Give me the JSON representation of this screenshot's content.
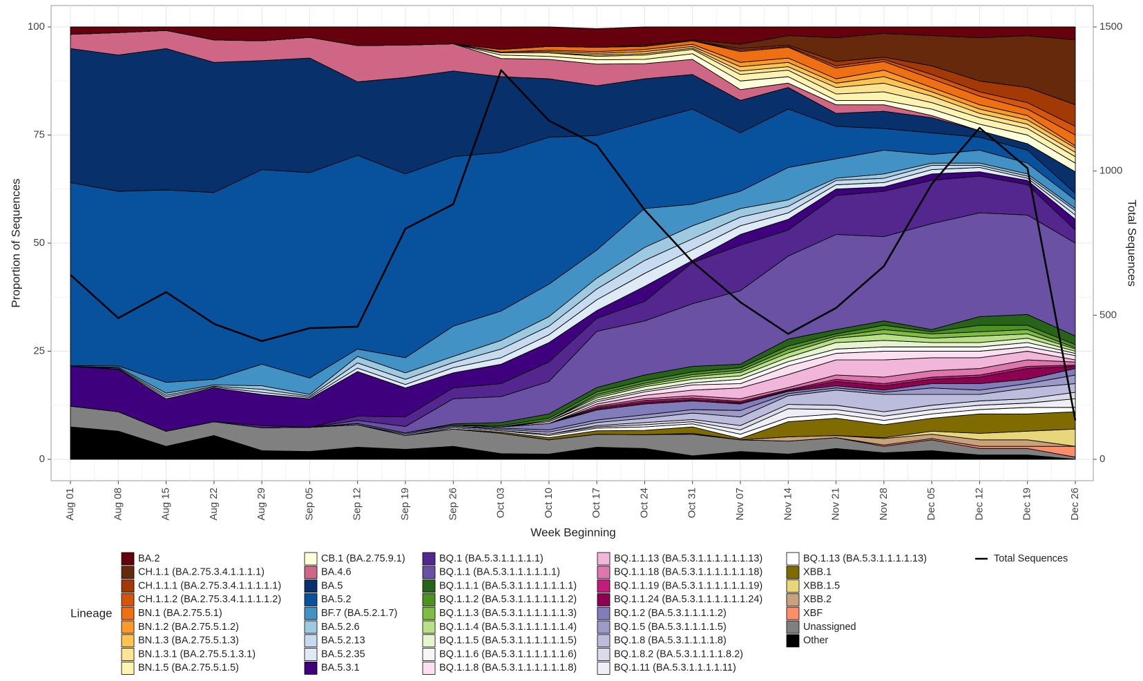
{
  "chart_data": {
    "type": "area",
    "stacked": true,
    "x_label": "Week Beginning",
    "y_label": "Proportion of Sequences",
    "y2_label": "Total Sequences",
    "legend_title": "Lineage",
    "grid": true,
    "categories": [
      "Aug 01",
      "Aug 08",
      "Aug 15",
      "Aug 22",
      "Aug 29",
      "Sep 05",
      "Sep 12",
      "Sep 19",
      "Sep 26",
      "Oct 03",
      "Oct 10",
      "Oct 17",
      "Oct 24",
      "Oct 31",
      "Nov 07",
      "Nov 14",
      "Nov 21",
      "Nov 28",
      "Dec 05",
      "Dec 12",
      "Dec 19",
      "Dec 26"
    ],
    "ylim": [
      0,
      100
    ],
    "yticks": [
      0,
      25,
      50,
      75,
      100
    ],
    "y2lim": [
      0,
      1500
    ],
    "y2ticks": [
      0,
      500,
      1000,
      1500
    ],
    "series": [
      {
        "name": "BA.2",
        "color": "#67000d",
        "values": [
          1.7,
          1.3,
          0.8,
          3,
          3.2,
          2.4,
          4.3,
          4.2,
          3.9,
          5.2,
          4.5,
          4.3,
          4.2,
          3,
          4,
          2,
          2.5,
          1.5,
          2,
          2.5,
          2,
          3
        ]
      },
      {
        "name": "CH.1.1 (BA.2.75.3.4.1.1.1.1)",
        "color": "#67290b",
        "values": [
          0,
          0,
          0,
          0,
          0,
          0,
          0,
          0,
          0,
          0,
          0,
          0,
          0.3,
          0.2,
          1,
          2.2,
          5.5,
          5.5,
          7,
          10,
          12,
          15
        ]
      },
      {
        "name": "CH.1.1.1 (BA.2.75.3.4.1.1.1.1.1)",
        "color": "#a33a06",
        "values": [
          0,
          0,
          0,
          0,
          0,
          0,
          0,
          0,
          0,
          0,
          0,
          0,
          0,
          0,
          0.4,
          0.3,
          1,
          0.5,
          2,
          2.5,
          3.5,
          5
        ]
      },
      {
        "name": "CH.1.1.2 (BA.2.75.3.4.1.1.1.1.2)",
        "color": "#d4550b",
        "values": [
          0,
          0,
          0,
          0,
          0,
          0,
          0,
          0,
          0,
          0,
          0,
          0,
          0,
          0,
          0.3,
          0.2,
          0.5,
          0.5,
          1,
          1,
          1.5,
          2
        ]
      },
      {
        "name": "BN.1 (BA.2.75.5.1)",
        "color": "#ee7012",
        "values": [
          0,
          0,
          0,
          0,
          0,
          0,
          0,
          0,
          0,
          0.6,
          0.9,
          1,
          0.7,
          0.8,
          2.5,
          2.5,
          2.5,
          2,
          2,
          2,
          1.5,
          2.5
        ]
      },
      {
        "name": "BN.1.2 (BA.2.75.5.1.2)",
        "color": "#fb9a29",
        "values": [
          0,
          0,
          0,
          0,
          0,
          0,
          0,
          0,
          0,
          0,
          0.3,
          0.4,
          0.5,
          0.5,
          1,
          1,
          1,
          1.5,
          1,
          1,
          1,
          0.5
        ]
      },
      {
        "name": "BN.1.3 (BA.2.75.5.1.3)",
        "color": "#fec44f",
        "values": [
          0,
          0,
          0,
          0,
          0,
          0,
          0,
          0,
          0,
          0.2,
          0.3,
          0.4,
          0.5,
          0.4,
          1,
          1,
          1,
          1.5,
          1,
          1,
          1,
          1
        ]
      },
      {
        "name": "BN.1.3.1 (BA.2.75.5.1.3.1)",
        "color": "#fee391",
        "values": [
          0,
          0,
          0,
          0,
          0,
          0,
          0,
          0,
          0,
          0,
          0,
          0.3,
          0.3,
          0.3,
          0.8,
          0.8,
          1.5,
          2,
          1.5,
          1,
          1,
          1
        ]
      },
      {
        "name": "BN.1.5 (BA.2.75.5.1.5)",
        "color": "#fff3b0",
        "values": [
          0,
          0,
          0,
          0,
          0,
          0,
          0,
          0,
          0,
          0.5,
          0.8,
          0.8,
          1,
          1,
          1.5,
          1.5,
          1.5,
          2,
          1.5,
          1.5,
          1.5,
          1.5
        ]
      },
      {
        "name": "CB.1 (BA.2.75.9.1)",
        "color": "#ffffd9",
        "values": [
          0,
          0,
          0,
          0,
          0,
          0,
          0,
          0,
          0,
          0.8,
          0.7,
          1,
          1,
          1.3,
          2,
          1.5,
          1,
          1,
          1.5,
          1.5,
          2,
          2
        ]
      },
      {
        "name": "BA.4.6",
        "color": "#cf6686",
        "values": [
          3.3,
          5.2,
          4.2,
          5.2,
          4.6,
          4.8,
          8.4,
          7.5,
          6.3,
          4.2,
          4.5,
          5,
          3.5,
          3.5,
          2.5,
          1,
          2,
          1.5,
          0.5,
          0,
          0,
          0
        ]
      },
      {
        "name": "BA.5",
        "color": "#08306b",
        "values": [
          31,
          31.5,
          32.7,
          30.1,
          25.2,
          26.5,
          17,
          22.3,
          19.8,
          17.5,
          13.5,
          11.5,
          10,
          8,
          7.5,
          5,
          3,
          4,
          3.5,
          1.5,
          1.5,
          5
        ]
      },
      {
        "name": "BA.5.2",
        "color": "#08519c",
        "values": [
          42.3,
          40.4,
          44.5,
          43.2,
          45,
          47.5,
          44.8,
          42.5,
          39.2,
          36.7,
          34,
          26.5,
          20,
          22,
          13.5,
          13.5,
          7.5,
          5,
          5,
          3,
          3,
          1.5
        ]
      },
      {
        "name": "BF.7 (BA.5.2.1.7)",
        "color": "#4292c6",
        "values": [
          0.2,
          0.3,
          2.5,
          1.3,
          5,
          3.8,
          1.7,
          3.5,
          7,
          6.8,
          7.5,
          6.5,
          9,
          5,
          4,
          7.5,
          4.5,
          5.5,
          2,
          3,
          2.5,
          2
        ]
      },
      {
        "name": "BA.5.2.6",
        "color": "#9ecae1",
        "values": [
          0,
          0.2,
          0.5,
          0.3,
          0.8,
          0.4,
          1.5,
          1.5,
          1.4,
          2,
          2.2,
          2.5,
          3,
          3,
          2,
          1.5,
          0.5,
          1,
          0.5,
          0.5,
          0.5,
          0.5
        ]
      },
      {
        "name": "BA.5.2.13",
        "color": "#c6dbef",
        "values": [
          0,
          0.2,
          0.4,
          0.2,
          0.7,
          0.3,
          1.2,
          1.2,
          1.2,
          2,
          2,
          2.5,
          3,
          2.5,
          2,
          1.5,
          1,
          1,
          1,
          0.5,
          0.5,
          1
        ]
      },
      {
        "name": "BA.5.2.35",
        "color": "#deebf7",
        "values": [
          0,
          0.1,
          0.4,
          0.2,
          0.5,
          0.3,
          0.8,
          0.8,
          1.2,
          1.5,
          1.8,
          2.5,
          3,
          2.5,
          2,
          1.5,
          1,
          1,
          1,
          1,
          0.5,
          1
        ]
      },
      {
        "name": "BA.5.3.1",
        "color": "#3f007d",
        "values": [
          9.2,
          9.8,
          7.5,
          7.8,
          7.2,
          6.6,
          10.3,
          6.7,
          3.5,
          4.5,
          4.5,
          1.8,
          3.5,
          0.5,
          2.5,
          2.5,
          1.5,
          1,
          1.5,
          1,
          1,
          2.5
        ]
      },
      {
        "name": "BQ.1 (BA.5.3.1.1.1.1.1)",
        "color": "#54278f",
        "values": [
          0,
          0,
          0,
          0,
          0.5,
          0,
          1,
          2.2,
          2.5,
          3,
          4.5,
          3,
          4.5,
          9.5,
          10.5,
          6,
          9,
          10.5,
          10,
          8.5,
          7,
          3
        ]
      },
      {
        "name": "BQ.1.1 (BA.5.3.1.1.1.1.1.1)",
        "color": "#6a51a3",
        "values": [
          0,
          0,
          0,
          0,
          0,
          0,
          0.7,
          1.5,
          5.8,
          6,
          7.5,
          13,
          12.5,
          14.5,
          17,
          19.2,
          22,
          19.5,
          24.5,
          24,
          23,
          21.5
        ]
      },
      {
        "name": "BQ.1.1.1 (BA.5.3.1.1.1.1.1.1.1)",
        "color": "#276419",
        "values": [
          0,
          0,
          0,
          0,
          0,
          0,
          0,
          0,
          0.3,
          0.7,
          1,
          1,
          1.3,
          1.3,
          0.8,
          1.6,
          1,
          1,
          0.5,
          2,
          2.5,
          2
        ]
      },
      {
        "name": "BQ.1.1.2 (BA.5.3.1.1.1.1.1.1.2)",
        "color": "#4d9221",
        "values": [
          0,
          0,
          0,
          0,
          0,
          0,
          0,
          0,
          0,
          0.3,
          0.5,
          0.6,
          0.6,
          0.6,
          0.6,
          0.8,
          0.5,
          1,
          0.5,
          1.5,
          1,
          0.7
        ]
      },
      {
        "name": "BQ.1.1.3 (BA.5.3.1.1.1.1.1.1.3)",
        "color": "#7fbc41",
        "values": [
          0,
          0,
          0,
          0,
          0,
          0,
          0,
          0,
          0,
          0,
          0,
          0.4,
          0.4,
          0.5,
          0.5,
          0.8,
          0.5,
          1,
          1,
          1,
          1,
          0.3
        ]
      },
      {
        "name": "BQ.1.1.4 (BA.5.3.1.1.1.1.1.1.4)",
        "color": "#b8e186",
        "values": [
          0,
          0,
          0,
          0,
          0,
          0,
          0,
          0,
          0,
          0,
          0,
          0.4,
          0.4,
          0.6,
          0.8,
          1,
          1,
          1.5,
          1,
          1.5,
          1,
          0.5
        ]
      },
      {
        "name": "BQ.1.1.5 (BA.5.3.1.1.1.1.1.1.5)",
        "color": "#e6f5d0",
        "values": [
          0,
          0,
          0,
          0,
          0,
          0,
          0,
          0,
          0,
          0,
          0.3,
          0.5,
          0.8,
          0.8,
          0.8,
          1,
          1.5,
          1.5,
          1,
          1,
          1,
          0.5
        ]
      },
      {
        "name": "BQ.1.1.6 (BA.5.3.1.1.1.1.1.1.6)",
        "color": "#f7f7f7",
        "values": [
          0,
          0,
          0,
          0,
          0,
          0,
          0,
          0,
          0,
          0,
          0,
          0.4,
          0.4,
          0.5,
          1,
          1,
          1,
          1,
          1,
          1,
          1,
          0.5
        ]
      },
      {
        "name": "BQ.1.1.8 (BA.5.3.1.1.1.1.1.1.8)",
        "color": "#fde0ef",
        "values": [
          0,
          0,
          0,
          0,
          0,
          0,
          0,
          0,
          0,
          0,
          0.4,
          0.5,
          0.8,
          1.2,
          1,
          2,
          1.5,
          2,
          1.5,
          1.5,
          1,
          1
        ]
      },
      {
        "name": "BQ.1.1.13 (BA.5.3.1.1.1.1.1.1.13)",
        "color": "#f1b6da",
        "values": [
          0,
          0,
          0,
          0,
          0,
          0,
          0,
          0,
          0,
          0,
          0,
          0.5,
          0.8,
          1.3,
          2.5,
          3,
          3.5,
          4,
          3,
          2.5,
          2,
          0.5
        ]
      },
      {
        "name": "BQ.1.1.18 (BA.5.3.1.1.1.1.1.1.18)",
        "color": "#de77ae",
        "values": [
          0,
          0,
          0,
          0,
          0,
          0,
          0,
          0,
          0,
          0,
          0,
          0.3,
          0.4,
          0.5,
          0.6,
          0.5,
          1,
          1.5,
          1.5,
          1.5,
          1.5,
          0.7
        ]
      },
      {
        "name": "BQ.1.1.19 (BA.5.3.1.1.1.1.1.1.19)",
        "color": "#c51b7d",
        "values": [
          0,
          0,
          0,
          0,
          0,
          0,
          0,
          0,
          0,
          0,
          0,
          0.3,
          0.4,
          0.4,
          0.3,
          0.2,
          0.5,
          0.5,
          0.5,
          0.5,
          0.5,
          0.3
        ]
      },
      {
        "name": "BQ.1.1.24 (BA.5.3.1.1.1.1.1.1.24)",
        "color": "#8e0152",
        "values": [
          0,
          0,
          0,
          0,
          0,
          0,
          0,
          0,
          0,
          0,
          0,
          0.3,
          0.4,
          0.3,
          0.3,
          0.2,
          1,
          1,
          1,
          1.5,
          2.5,
          0.5
        ]
      },
      {
        "name": "BQ.1.2 (BA.5.3.1.1.1.1.2)",
        "color": "#807dba",
        "values": [
          0,
          0,
          0,
          0,
          0,
          0,
          0.3,
          0.3,
          0.3,
          0.3,
          1.5,
          2.3,
          2.5,
          2,
          1.5,
          0.5,
          0.5,
          0.5,
          1,
          1.5,
          1,
          1.5
        ]
      },
      {
        "name": "BQ.1.5 (BA.5.3.1.1.1.1.5)",
        "color": "#9e9ac8",
        "values": [
          0,
          0,
          0,
          0,
          0,
          0,
          0,
          0,
          0,
          0.3,
          0.5,
          0.6,
          0.8,
          0.8,
          1.5,
          0.5,
          0.5,
          0.5,
          1.5,
          1,
          1,
          2
        ]
      },
      {
        "name": "BQ.1.8 (BA.5.3.1.1.1.1.8)",
        "color": "#bcbddc",
        "values": [
          0,
          0,
          0,
          0,
          0,
          0,
          0,
          0.3,
          0.3,
          0.3,
          0.5,
          0.7,
          1,
          1.5,
          2,
          2,
          3.5,
          4,
          2.5,
          1.5,
          2.5,
          2
        ]
      },
      {
        "name": "BQ.1.8.2 (BA.5.3.1.1.1.1.8.2)",
        "color": "#dadaeb",
        "values": [
          0,
          0,
          0,
          0,
          0,
          0,
          0,
          0,
          0,
          0,
          0,
          0.3,
          0.5,
          0.5,
          1,
          1,
          1,
          1,
          1,
          1,
          1,
          1.5
        ]
      },
      {
        "name": "BQ.1.11 (BA.5.3.1.1.1.1.11)",
        "color": "#efedf5",
        "values": [
          0,
          0,
          0,
          0,
          0,
          0,
          0,
          0,
          0,
          0,
          0.3,
          0.3,
          0.5,
          0.5,
          1,
          2,
          1,
          1,
          1,
          1,
          1,
          2
        ]
      },
      {
        "name": "BQ.1.13 (BA.5.3.1.1.1.1.13)",
        "color": "#ffffff",
        "values": [
          0,
          0,
          0,
          0,
          0,
          0,
          0,
          0,
          0.3,
          0.3,
          0.5,
          0.6,
          0.8,
          0.7,
          1,
          1,
          1,
          1,
          1,
          1,
          1.5,
          1
        ]
      },
      {
        "name": "XBB.1",
        "color": "#806b00",
        "values": [
          0,
          0,
          0,
          0,
          0,
          0,
          0,
          0,
          0,
          0.3,
          0.5,
          0.8,
          1,
          1.5,
          0.3,
          3.5,
          4,
          3,
          3,
          4.5,
          4,
          4
        ]
      },
      {
        "name": "XBB.1.5",
        "color": "#e8d77a",
        "values": [
          0,
          0,
          0,
          0,
          0,
          0,
          0,
          0,
          0,
          0,
          0,
          0,
          0,
          0,
          0,
          0,
          0,
          0.2,
          0.7,
          1.5,
          2,
          4
        ]
      },
      {
        "name": "XBB.2",
        "color": "#c8a27a",
        "values": [
          0,
          0,
          0,
          0,
          0,
          0,
          0,
          0,
          0,
          0,
          0,
          0,
          0,
          0.2,
          0,
          1,
          0.5,
          1.5,
          1,
          1.5,
          1.5,
          0
        ]
      },
      {
        "name": "XBF",
        "color": "#fc8d6b",
        "values": [
          0,
          0,
          0,
          0,
          0,
          0,
          0,
          0,
          0,
          0,
          0,
          0,
          0,
          0,
          0,
          0,
          0,
          0.3,
          0.3,
          0.5,
          0.5,
          2.5
        ]
      },
      {
        "name": "Unassigned",
        "color": "#808080",
        "values": [
          4.8,
          4.5,
          3.5,
          3.2,
          5.3,
          5.6,
          5.2,
          3.2,
          4,
          4.7,
          3.3,
          3,
          3.2,
          5,
          2.7,
          3,
          2.5,
          1.5,
          2.5,
          1.5,
          1.5,
          0.5
        ]
      },
      {
        "name": "Other",
        "color": "#000000",
        "values": [
          7.5,
          6.5,
          3,
          5.5,
          2,
          1.8,
          2.8,
          2.3,
          3,
          1.3,
          1.2,
          2.8,
          2.5,
          0.8,
          1.8,
          1.2,
          2.5,
          1.5,
          2,
          1,
          1,
          0
        ]
      },
      {
        "name": "Total Sequences",
        "type": "line",
        "axis": "y2",
        "color": "#000000",
        "values": [
          640,
          490,
          580,
          470,
          410,
          455,
          460,
          800,
          885,
          1350,
          1175,
          1090,
          865,
          685,
          545,
          435,
          525,
          670,
          955,
          1150,
          1010,
          135
        ]
      }
    ]
  }
}
